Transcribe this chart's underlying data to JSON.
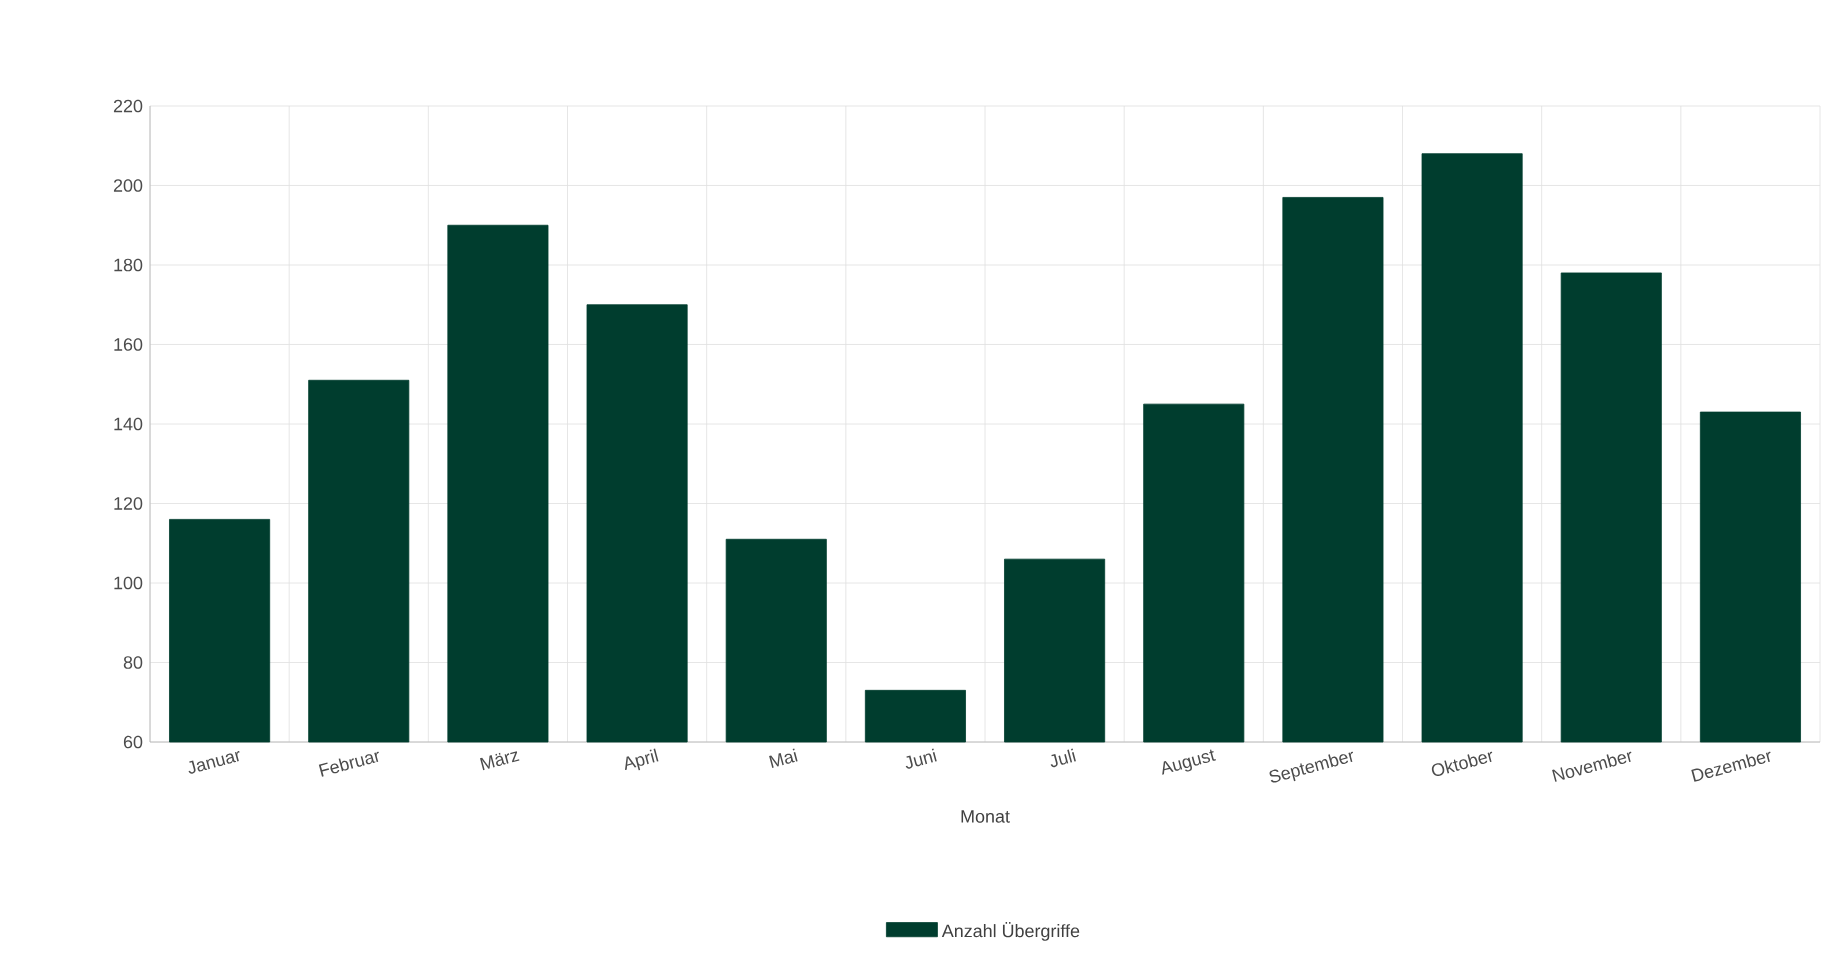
{
  "chart_data": {
    "type": "bar",
    "xlabel": "Monat",
    "categories": [
      "Januar",
      "Februar",
      "März",
      "April",
      "Mai",
      "Juni",
      "Juli",
      "August",
      "September",
      "Oktober",
      "November",
      "Dezember"
    ],
    "series": [
      {
        "name": "Anzahl Übergriffe",
        "color": "#003d2e",
        "values": [
          116,
          151,
          190,
          170,
          111,
          73,
          106,
          145,
          197,
          208,
          178,
          143
        ]
      }
    ],
    "ylim": [
      60,
      220
    ],
    "yticks": [
      60,
      80,
      100,
      120,
      140,
      160,
      180,
      200,
      220
    ],
    "grid": true,
    "legend": "bottom"
  }
}
